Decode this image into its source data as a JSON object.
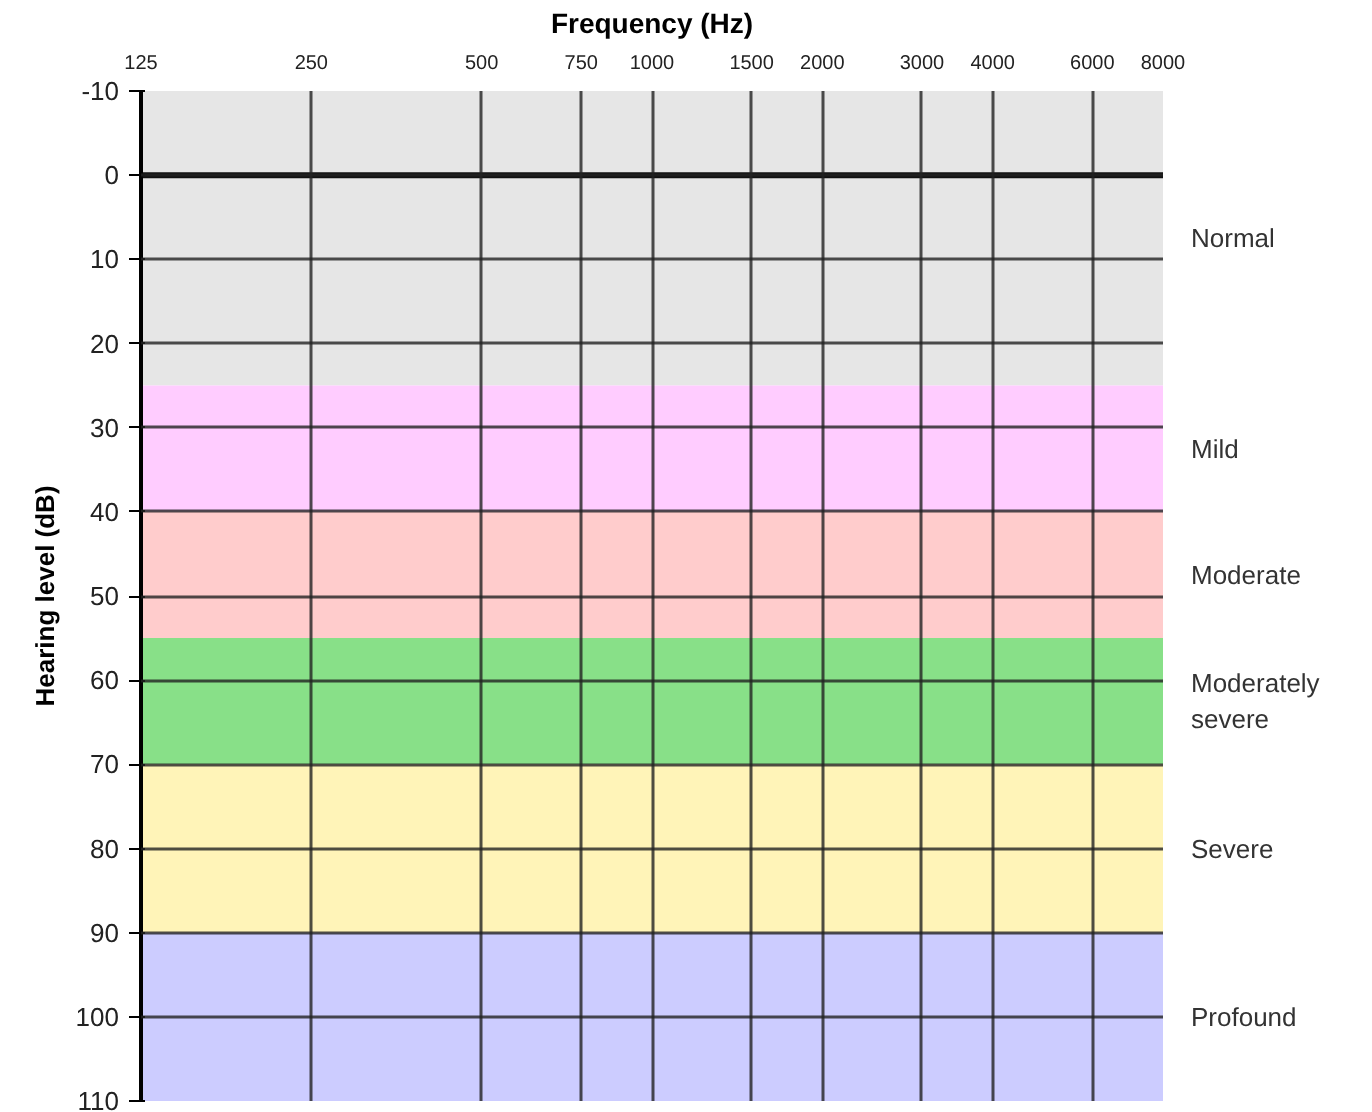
{
  "chart_data": {
    "type": "line",
    "xlabel": "Frequency (Hz)",
    "ylabel": "Hearing level (dB)",
    "log": "x",
    "xlim": [
      125,
      8000
    ],
    "xticks": [
      125,
      250,
      500,
      750,
      1000,
      1500,
      2000,
      3000,
      4000,
      6000,
      8000
    ],
    "ylim": [
      110,
      -10
    ],
    "yticks": [
      -10,
      0,
      10,
      20,
      30,
      40,
      50,
      60,
      70,
      80,
      90,
      100,
      110
    ],
    "grid": true,
    "ref_lines": [
      {
        "axis": "y",
        "value": 0,
        "label": null
      }
    ],
    "bands": [
      {
        "axis": "y",
        "from": -10,
        "to": 25,
        "label": "Normal",
        "color": "#e6e6e6"
      },
      {
        "axis": "y",
        "from": 25,
        "to": 40,
        "label": "Mild",
        "color": "#ffccff"
      },
      {
        "axis": "y",
        "from": 40,
        "to": 55,
        "label": "Moderate",
        "color": "#ffcccc"
      },
      {
        "axis": "y",
        "from": 55,
        "to": 70,
        "label": "Moderately severe",
        "color": "#88e088"
      },
      {
        "axis": "y",
        "from": 70,
        "to": 90,
        "label": "Severe",
        "color": "#fff4b8"
      },
      {
        "axis": "y",
        "from": 90,
        "to": 110,
        "label": "Profound",
        "color": "#ccccff"
      }
    ]
  }
}
